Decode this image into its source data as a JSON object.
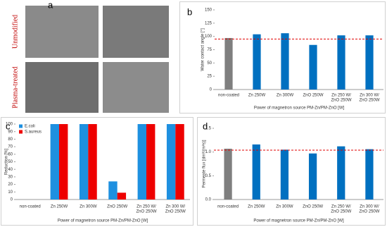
{
  "panel_a": {
    "label": "a",
    "rows": [
      "Unmodified",
      "Plasma-treated"
    ]
  },
  "chart_data": [
    {
      "type": "bar",
      "label": "b",
      "y_label": "Water contact angle [°]",
      "x_label": "Power of magnetron source PM-Zn/PM-ZnO  [W]",
      "categories": [
        [
          "non-coated"
        ],
        [
          "Zn 250W"
        ],
        [
          "Zn 300W"
        ],
        [
          "ZnO 250W"
        ],
        [
          "Zn 250 W/",
          "ZnO 250W"
        ],
        [
          "Zn 300 W/",
          "ZnO 250W"
        ]
      ],
      "values": [
        97,
        104,
        106,
        84,
        102,
        102
      ],
      "colors": [
        "#7f7f7f",
        "#0070c0",
        "#0070c0",
        "#0070c0",
        "#0070c0",
        "#0070c0"
      ],
      "reference_line": 95,
      "reference_color": "#e00000",
      "ylim": [
        0,
        150
      ],
      "yticks": [
        0,
        25,
        50,
        75,
        100,
        125,
        150
      ]
    },
    {
      "type": "bar",
      "label": "c",
      "y_label": "Reduction [%]",
      "x_label": "Power of magnetron source PM-Zn/PM-ZnO  [W]",
      "categories": [
        [
          "non-coated"
        ],
        [
          "Zn 250W"
        ],
        [
          "Zn 300W"
        ],
        [
          "ZnO 250W"
        ],
        [
          "Zn 250 W/",
          "ZnO 250W"
        ],
        [
          "Zn 300 W/",
          "ZnO 250W"
        ]
      ],
      "series": [
        {
          "name": "E.coli",
          "color": "#1e90e0",
          "values": [
            0,
            100,
            100,
            24,
            100,
            100
          ]
        },
        {
          "name": "S.aureus",
          "color": "#ee0000",
          "values": [
            0,
            100,
            100,
            9,
            100,
            100
          ]
        }
      ],
      "legend": "top-left",
      "ylim": [
        0,
        100
      ],
      "yticks": [
        0,
        10,
        20,
        30,
        40,
        50,
        60,
        70,
        80,
        90,
        100
      ]
    },
    {
      "type": "bar",
      "label": "d",
      "y_label": "Permeate flux [dm³/(m²s)]",
      "x_label": "Power of magnetron source PM-Zn/PM-ZnO  [W]",
      "categories": [
        [
          "non-coated"
        ],
        [
          "Zn 250W"
        ],
        [
          "Zn 300W"
        ],
        [
          "ZnO 250W"
        ],
        [
          "Zn 250 W/",
          "ZnO 250W"
        ],
        [
          "Zn 300 W/",
          "ZnO 250W"
        ]
      ],
      "values": [
        1.07,
        1.16,
        1.05,
        0.97,
        1.12,
        1.06
      ],
      "colors": [
        "#7f7f7f",
        "#0070c0",
        "#0070c0",
        "#0070c0",
        "#0070c0",
        "#0070c0"
      ],
      "reference_line": 1.04,
      "reference_color": "#e00000",
      "ylim": [
        0,
        1.5
      ],
      "yticks": [
        {
          "value": 0,
          "label": "0.0"
        },
        0.5,
        {
          "value": 1,
          "label": "1.0"
        },
        1.5
      ]
    }
  ]
}
